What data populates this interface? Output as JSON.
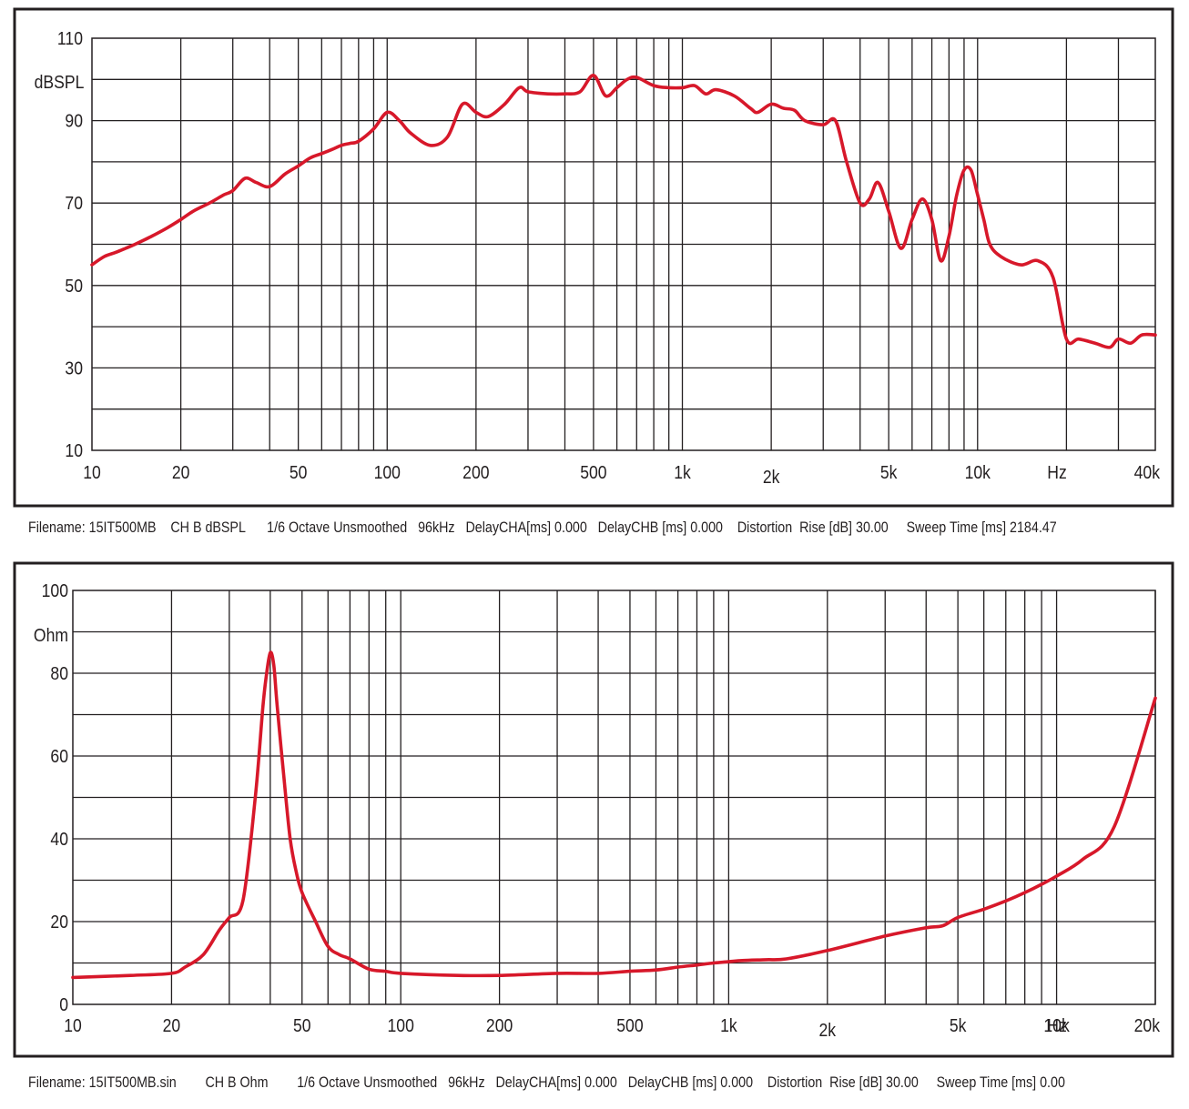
{
  "chart_data": [
    {
      "type": "line",
      "title": "",
      "ylabel": "dBSPL",
      "xlabel": "Hz",
      "xscale": "log",
      "xlim": [
        10,
        40000
      ],
      "ylim": [
        10,
        110
      ],
      "grid": true,
      "line_color": "#d7182a",
      "frame_color": "#231f20",
      "ytick_labels": [
        {
          "value": 10,
          "label": "10"
        },
        {
          "value": 30,
          "label": "30"
        },
        {
          "value": 50,
          "label": "50"
        },
        {
          "value": 70,
          "label": "70"
        },
        {
          "value": 90,
          "label": "90"
        },
        {
          "value": 110,
          "label": "110"
        }
      ],
      "y_grid": [
        20,
        30,
        40,
        50,
        60,
        70,
        80,
        90,
        100
      ],
      "xtick_labels": [
        {
          "value": 10,
          "label": "10"
        },
        {
          "value": 20,
          "label": "20"
        },
        {
          "value": 50,
          "label": "50"
        },
        {
          "value": 100,
          "label": "100"
        },
        {
          "value": 200,
          "label": "200"
        },
        {
          "value": 500,
          "label": "500"
        },
        {
          "value": 1000,
          "label": "1k"
        },
        {
          "value": 2000,
          "label": "2k"
        },
        {
          "value": 5000,
          "label": "5k"
        },
        {
          "value": 10000,
          "label": "10k"
        },
        {
          "value": 40000,
          "label": "40k"
        }
      ],
      "x_grid": [
        20,
        30,
        40,
        50,
        60,
        70,
        80,
        90,
        100,
        200,
        300,
        400,
        500,
        600,
        700,
        800,
        900,
        1000,
        2000,
        3000,
        4000,
        5000,
        6000,
        7000,
        8000,
        9000,
        10000,
        20000,
        30000
      ],
      "x": [
        10,
        11,
        12,
        13,
        14,
        16,
        18,
        20,
        22,
        25,
        28,
        30,
        33,
        36,
        40,
        45,
        50,
        55,
        60,
        65,
        70,
        75,
        80,
        90,
        100,
        110,
        120,
        140,
        160,
        180,
        200,
        220,
        250,
        280,
        300,
        350,
        400,
        450,
        500,
        550,
        600,
        650,
        700,
        800,
        900,
        1000,
        1100,
        1200,
        1300,
        1500,
        1700,
        1800,
        2000,
        2200,
        2400,
        2600,
        3000,
        3300,
        3600,
        4000,
        4300,
        4600,
        5000,
        5500,
        6000,
        6500,
        7000,
        7500,
        8000,
        8500,
        9000,
        9500,
        10000,
        10500,
        11000,
        12000,
        14000,
        16000,
        18000,
        20000,
        22000,
        25000,
        28000,
        30000,
        33000,
        36000,
        40000
      ],
      "series": [
        {
          "values": [
            55,
            57,
            58,
            59,
            60,
            62,
            64,
            66,
            68,
            70,
            72,
            73,
            76,
            75,
            74,
            77,
            79,
            81,
            82,
            83,
            84,
            84.5,
            85,
            88,
            92,
            90,
            87,
            84,
            86,
            94,
            92,
            91,
            94,
            98,
            97,
            96.5,
            96.5,
            97,
            101,
            96,
            98,
            100,
            100.5,
            98.5,
            98,
            98,
            98.5,
            96.5,
            97.5,
            96,
            93,
            92,
            94,
            93,
            92.5,
            90,
            89,
            90,
            80,
            70,
            71,
            75,
            68,
            59,
            66,
            71,
            66,
            56,
            62,
            72,
            78,
            78,
            72,
            66,
            60,
            57,
            55,
            56,
            52,
            37,
            37,
            36,
            35,
            37,
            36,
            38,
            38
          ]
        }
      ]
    },
    {
      "type": "line",
      "title": "",
      "ylabel": "Ohm",
      "xlabel": "Hz",
      "xscale": "log",
      "xlim": [
        10,
        20000
      ],
      "ylim": [
        0,
        100
      ],
      "grid": true,
      "line_color": "#d7182a",
      "frame_color": "#231f20",
      "ytick_labels": [
        {
          "value": 0,
          "label": "0"
        },
        {
          "value": 20,
          "label": "20"
        },
        {
          "value": 40,
          "label": "40"
        },
        {
          "value": 60,
          "label": "60"
        },
        {
          "value": 80,
          "label": "80"
        },
        {
          "value": 100,
          "label": "100"
        }
      ],
      "y_grid": [
        10,
        20,
        30,
        40,
        50,
        60,
        70,
        80,
        90
      ],
      "xtick_labels": [
        {
          "value": 10,
          "label": "10"
        },
        {
          "value": 20,
          "label": "20"
        },
        {
          "value": 50,
          "label": "50"
        },
        {
          "value": 100,
          "label": "100"
        },
        {
          "value": 200,
          "label": "200"
        },
        {
          "value": 500,
          "label": "500"
        },
        {
          "value": 1000,
          "label": "1k"
        },
        {
          "value": 2000,
          "label": "2k"
        },
        {
          "value": 5000,
          "label": "5k"
        },
        {
          "value": 10000,
          "label": "10k"
        },
        {
          "value": 20000,
          "label": "20k"
        }
      ],
      "x_grid": [
        20,
        30,
        40,
        50,
        60,
        70,
        80,
        90,
        100,
        200,
        300,
        400,
        500,
        600,
        700,
        800,
        900,
        1000,
        2000,
        3000,
        4000,
        5000,
        6000,
        7000,
        8000,
        9000,
        10000,
        20000
      ],
      "x": [
        10,
        15,
        20,
        22,
        25,
        28,
        30,
        33,
        36,
        38,
        39,
        40,
        41,
        42,
        44,
        46,
        48,
        50,
        55,
        60,
        65,
        70,
        80,
        90,
        100,
        150,
        200,
        300,
        400,
        500,
        600,
        700,
        800,
        900,
        1000,
        1100,
        1300,
        1500,
        2000,
        3000,
        4000,
        4500,
        5000,
        6000,
        7000,
        8000,
        9000,
        10000,
        12000,
        15000,
        20000
      ],
      "series": [
        {
          "values": [
            6.5,
            7,
            7.5,
            9,
            12,
            18,
            21,
            25,
            50,
            72,
            80,
            85,
            82,
            72,
            55,
            40,
            32,
            27,
            20,
            14,
            12,
            11,
            8.5,
            8,
            7.5,
            7,
            7,
            7.5,
            7.5,
            8,
            8.3,
            9,
            9.5,
            10,
            10.3,
            10.6,
            10.8,
            11,
            13,
            16.5,
            18.5,
            19,
            21,
            23,
            25,
            27,
            29,
            31,
            35,
            43,
            74
          ]
        }
      ]
    }
  ],
  "captions": [
    "Filename: 15IT500MB    CH B dBSPL      1/6 Octave Unsmoothed   96kHz   DelayCHA[ms] 0.000   DelayCHB [ms] 0.000    Distortion  Rise [dB] 30.00     Sweep Time [ms] 2184.47",
    "Filename: 15IT500MB.sin        CH B Ohm        1/6 Octave Unsmoothed   96kHz   DelayCHA[ms] 0.000   DelayCHB [ms] 0.000    Distortion  Rise [dB] 30.00     Sweep Time [ms] 0.00"
  ]
}
